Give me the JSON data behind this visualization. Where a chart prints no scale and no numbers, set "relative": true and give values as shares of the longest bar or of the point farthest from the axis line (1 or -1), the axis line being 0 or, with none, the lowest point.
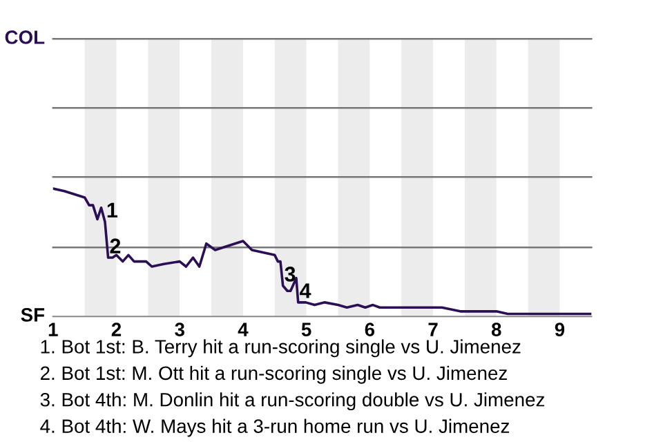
{
  "chart_data": {
    "type": "line",
    "relative": true,
    "xlim": [
      1,
      9.5
    ],
    "xticks": [
      1,
      2,
      3,
      4,
      5,
      6,
      7,
      8,
      9
    ],
    "ref_lines": [
      {
        "axis": "y",
        "value": 0.54,
        "color": "#777777"
      },
      {
        "axis": "y",
        "value": 1.09,
        "color": "#777777"
      },
      {
        "axis": "y",
        "value": 1.63,
        "color": "#777777"
      },
      {
        "axis": "y",
        "value": 2.17,
        "color": "#777777"
      }
    ],
    "marker": "none",
    "line_style": "solid",
    "x": [
      1.0,
      1.18,
      1.5,
      1.57,
      1.63,
      1.7,
      1.76,
      1.82,
      1.87,
      1.94,
      2.0,
      2.1,
      2.19,
      2.28,
      2.47,
      2.56,
      2.75,
      3.0,
      3.1,
      3.21,
      3.31,
      3.42,
      3.56,
      4.0,
      4.14,
      4.5,
      4.55,
      4.59,
      4.63,
      4.7,
      4.75,
      4.84,
      4.87,
      4.99,
      5.13,
      5.29,
      5.5,
      5.64,
      5.81,
      5.93,
      6.05,
      6.16,
      6.53,
      6.69,
      7.14,
      7.43,
      8.0,
      8.18,
      9.5
    ],
    "series": [
      {
        "color": "#2a0f55",
        "values": [
          1.0,
          0.98,
          0.93,
          0.87,
          0.87,
          0.76,
          0.85,
          0.74,
          0.46,
          0.46,
          0.48,
          0.43,
          0.48,
          0.43,
          0.43,
          0.39,
          0.41,
          0.43,
          0.39,
          0.46,
          0.39,
          0.57,
          0.52,
          0.59,
          0.52,
          0.48,
          0.43,
          0.43,
          0.24,
          0.2,
          0.2,
          0.3,
          0.11,
          0.11,
          0.09,
          0.11,
          0.09,
          0.07,
          0.09,
          0.07,
          0.09,
          0.07,
          0.07,
          0.07,
          0.07,
          0.04,
          0.04,
          0.02,
          0.02
        ]
      }
    ],
    "bands": [
      {
        "axis": "x",
        "from": 1.5,
        "to": 2,
        "color": "#ececec"
      },
      {
        "axis": "x",
        "from": 2.5,
        "to": 3,
        "color": "#ececec"
      },
      {
        "axis": "x",
        "from": 3.5,
        "to": 4,
        "color": "#ececec"
      },
      {
        "axis": "x",
        "from": 4.5,
        "to": 5,
        "color": "#ececec"
      },
      {
        "axis": "x",
        "from": 5.5,
        "to": 6,
        "color": "#ececec"
      },
      {
        "axis": "x",
        "from": 6.5,
        "to": 7,
        "color": "#ececec"
      },
      {
        "axis": "x",
        "from": 7.5,
        "to": 8,
        "color": "#ececec"
      },
      {
        "axis": "x",
        "from": 8.5,
        "to": 9,
        "color": "#ececec"
      }
    ],
    "annotations": [
      "COL",
      "SF",
      {
        "text": "1",
        "x": 1.82,
        "y": 0.74
      },
      {
        "text": "2",
        "x": 1.87,
        "y": 0.46
      },
      {
        "text": "3",
        "x": 4.63,
        "y": 0.24
      },
      {
        "text": "4",
        "x": 4.87,
        "y": 0.11
      },
      "1. Bot 1st: B. Terry hit a run-scoring single vs U. Jimenez",
      "2. Bot 1st: M. Ott hit a run-scoring single vs U. Jimenez",
      "3. Bot 4th: M. Donlin hit a run-scoring double vs U. Jimenez",
      "4. Bot 4th: W. Mays hit a 3-run home run vs U. Jimenez"
    ]
  }
}
